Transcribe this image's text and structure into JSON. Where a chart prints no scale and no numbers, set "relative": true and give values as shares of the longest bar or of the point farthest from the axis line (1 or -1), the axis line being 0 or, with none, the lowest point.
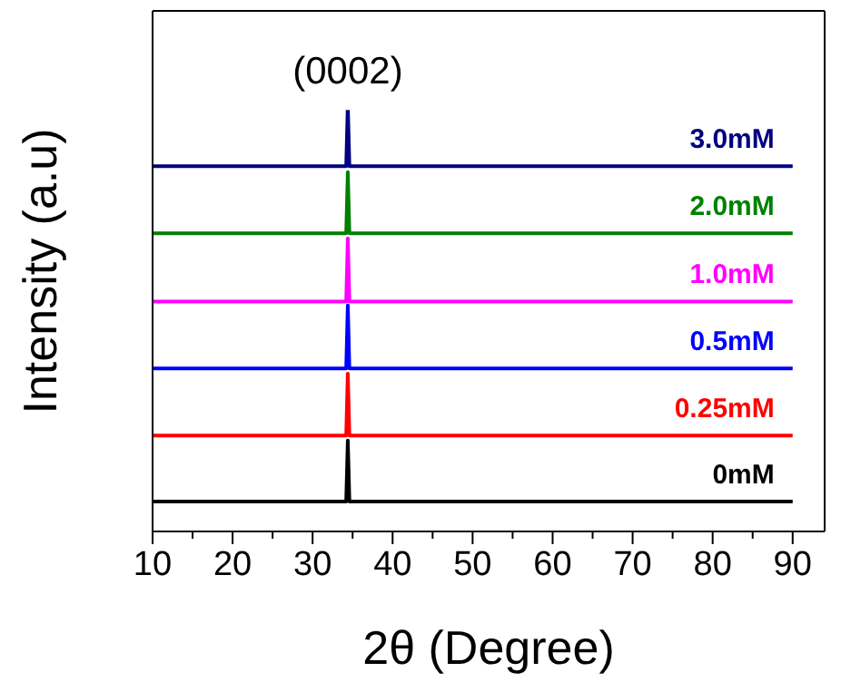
{
  "chart_data": {
    "type": "line",
    "relative": true,
    "xlabel": "2θ (Degree)",
    "ylabel": "Intensity (a.u)",
    "xlim": [
      10,
      94
    ],
    "xticks": [
      10,
      {
        "value": 15,
        "label": null
      },
      20,
      {
        "value": 25,
        "label": null
      },
      30,
      {
        "value": 35,
        "label": null
      },
      40,
      {
        "value": 45,
        "label": null
      },
      50,
      {
        "value": 55,
        "label": null
      },
      60,
      {
        "value": 65,
        "label": null
      },
      70,
      {
        "value": 75,
        "label": null
      },
      80,
      {
        "value": 85,
        "label": null
      },
      90
    ],
    "annotations": [
      {
        "text": "(0002)",
        "x": 34.4,
        "y": 1
      }
    ],
    "marker": "none",
    "line_style": "solid",
    "series": [
      {
        "name": "0mM",
        "color": "#000000",
        "x": [
          10,
          34.2,
          34.4,
          34.6,
          90
        ],
        "values": [
          0.07,
          0.07,
          0.213,
          0.07,
          0.07
        ]
      },
      {
        "name": "0.25mM",
        "color": "#ff0000",
        "x": [
          10,
          34.2,
          34.4,
          34.6,
          90
        ],
        "values": [
          0.225,
          0.225,
          0.37,
          0.225,
          0.225
        ]
      },
      {
        "name": "0.5mM",
        "color": "#0000ff",
        "x": [
          10,
          34.2,
          34.4,
          34.6,
          90
        ],
        "values": [
          0.382,
          0.382,
          0.53,
          0.382,
          0.382
        ]
      },
      {
        "name": "1.0mM",
        "color": "#ff00ff",
        "x": [
          10,
          34.2,
          34.4,
          34.6,
          90
        ],
        "values": [
          0.539,
          0.539,
          0.687,
          0.539,
          0.539
        ]
      },
      {
        "name": "2.0mM",
        "color": "#008000",
        "x": [
          10,
          34.2,
          34.4,
          34.6,
          90
        ],
        "values": [
          0.699,
          0.699,
          0.842,
          0.699,
          0.699
        ]
      },
      {
        "name": "3.0mM",
        "color": "#000080",
        "x": [
          10,
          34.2,
          34.4,
          34.6,
          90
        ],
        "values": [
          0.856,
          0.856,
          1,
          0.856,
          0.856
        ]
      }
    ]
  }
}
